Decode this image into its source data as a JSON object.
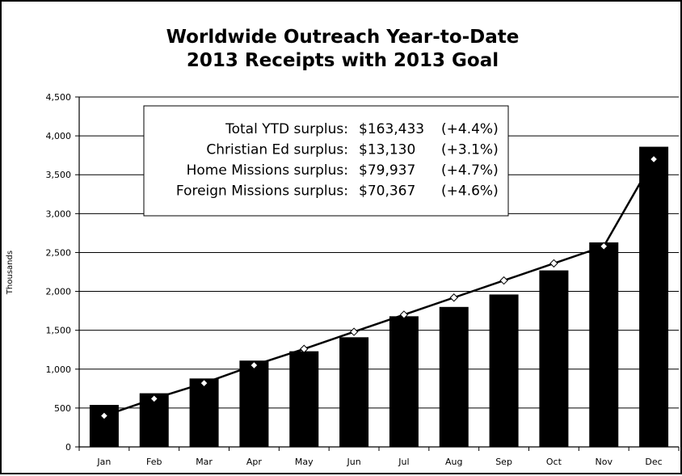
{
  "chart_data": {
    "type": "bar",
    "title": [
      "Worldwide Outreach Year-to-Date",
      "2013 Receipts with 2013 Goal"
    ],
    "ylabel": "Thousands",
    "xlabel": "",
    "ylim": [
      0,
      4500
    ],
    "yticks": [
      0,
      500,
      1000,
      1500,
      2000,
      2500,
      3000,
      3500,
      4000,
      4500
    ],
    "ytick_labels": [
      "0",
      "500",
      "1,000",
      "1,500",
      "2,000",
      "2,500",
      "3,000",
      "3,500",
      "4,000",
      "4,500"
    ],
    "grid": true,
    "categories": [
      "Jan",
      "Feb",
      "Mar",
      "Apr",
      "May",
      "Jun",
      "Jul",
      "Aug",
      "Sep",
      "Oct",
      "Nov",
      "Dec"
    ],
    "series": [
      {
        "type": "bar",
        "color": "#000000",
        "values": [
          540,
          690,
          880,
          1110,
          1230,
          1410,
          1680,
          1800,
          1960,
          2270,
          2630,
          3860
        ]
      },
      {
        "type": "line",
        "color": "#000000",
        "marker": "diamond",
        "values": [
          400,
          620,
          820,
          1050,
          1260,
          1480,
          1700,
          1920,
          2140,
          2360,
          2580,
          3700
        ]
      }
    ],
    "annotation": {
      "rows": [
        {
          "label": "Total YTD surplus:",
          "amount": "$163,433",
          "pct": "(+4.4%)"
        },
        {
          "label": "Christian Ed surplus:",
          "amount": "$13,130",
          "pct": "(+3.1%)"
        },
        {
          "label": "Home Missions surplus:",
          "amount": "$79,937",
          "pct": "(+4.7%)"
        },
        {
          "label": "Foreign Missions surplus:",
          "amount": "$70,367",
          "pct": "(+4.6%)"
        }
      ]
    }
  }
}
